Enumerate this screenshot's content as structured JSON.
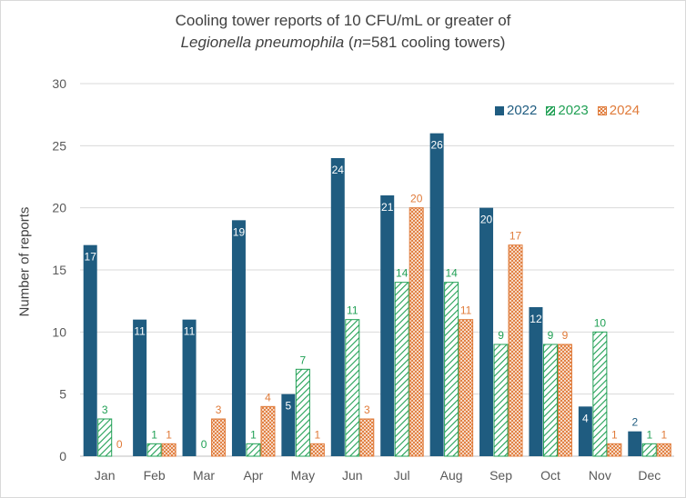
{
  "chart_data": {
    "type": "bar",
    "title_line1": "Cooling tower reports of 10 CFU/mL or greater of",
    "title_line2_italic": "Legionella pneumophila",
    "title_line2_rest": " (",
    "title_n": "n",
    "title_line2_end": "=581 cooling towers)",
    "xlabel": "",
    "ylabel": "Number of reports",
    "ylim": [
      0,
      30
    ],
    "yticks": [
      0,
      5,
      10,
      15,
      20,
      25,
      30
    ],
    "grid": true,
    "legend_position": "top-right",
    "categories": [
      "Jan",
      "Feb",
      "Mar",
      "Apr",
      "May",
      "Jun",
      "Jul",
      "Aug",
      "Sep",
      "Oct",
      "Nov",
      "Dec"
    ],
    "series": [
      {
        "name": "2022",
        "color": "#1f5c80",
        "pattern": "solid",
        "values": [
          17,
          11,
          11,
          19,
          5,
          24,
          21,
          26,
          20,
          12,
          4,
          2
        ]
      },
      {
        "name": "2023",
        "color": "#21a055",
        "pattern": "diagonal-hatch",
        "values": [
          3,
          1,
          0,
          1,
          7,
          11,
          14,
          14,
          9,
          9,
          10,
          1
        ]
      },
      {
        "name": "2024",
        "color": "#e07b3a",
        "pattern": "cross-hatch",
        "values": [
          0,
          1,
          3,
          4,
          1,
          3,
          20,
          11,
          17,
          9,
          1,
          1
        ]
      }
    ]
  }
}
